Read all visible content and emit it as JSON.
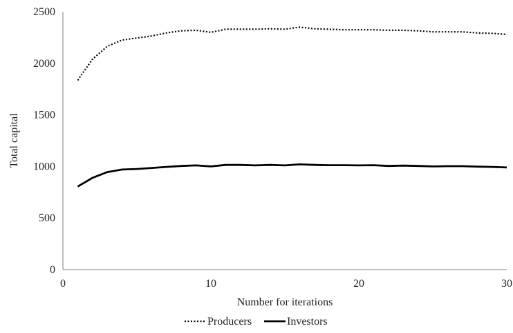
{
  "chart_data": {
    "type": "line",
    "title": "",
    "xlabel": "Number for iterations",
    "ylabel": "Total capital",
    "xlim": [
      0,
      30
    ],
    "ylim": [
      0,
      2500
    ],
    "x_ticks": [
      0,
      10,
      20,
      30
    ],
    "y_ticks": [
      0,
      500,
      1000,
      1500,
      2000,
      2500
    ],
    "grid": false,
    "legend_position": "bottom",
    "x": [
      1,
      2,
      3,
      4,
      5,
      6,
      7,
      8,
      9,
      10,
      11,
      12,
      13,
      14,
      15,
      16,
      17,
      18,
      19,
      20,
      21,
      22,
      23,
      24,
      25,
      26,
      27,
      28,
      29,
      30
    ],
    "series": [
      {
        "name": "Producers",
        "line_style": "dotted",
        "color": "#000000",
        "values": [
          1835,
          2040,
          2165,
          2225,
          2245,
          2265,
          2295,
          2315,
          2320,
          2300,
          2330,
          2330,
          2330,
          2335,
          2330,
          2350,
          2335,
          2330,
          2325,
          2325,
          2325,
          2320,
          2320,
          2315,
          2305,
          2305,
          2305,
          2295,
          2290,
          2280
        ]
      },
      {
        "name": "Investors",
        "line_style": "solid",
        "color": "#000000",
        "values": [
          805,
          890,
          945,
          970,
          975,
          985,
          995,
          1005,
          1010,
          1000,
          1015,
          1015,
          1010,
          1015,
          1010,
          1020,
          1015,
          1012,
          1012,
          1010,
          1012,
          1005,
          1008,
          1005,
          1000,
          1003,
          1003,
          998,
          995,
          990
        ]
      }
    ]
  }
}
